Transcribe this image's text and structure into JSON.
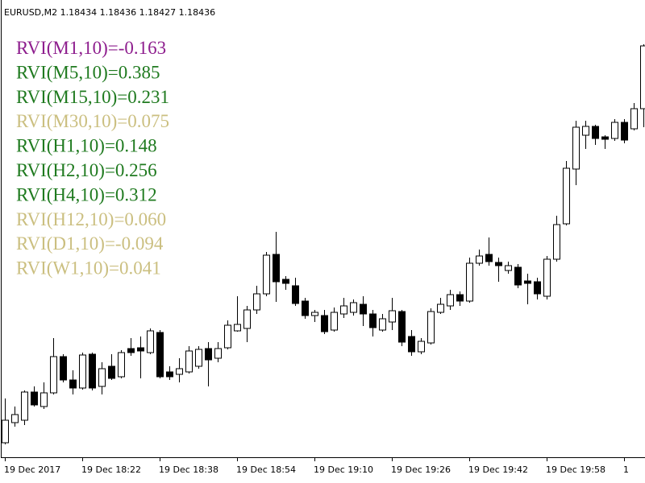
{
  "chart_data": {
    "type": "candlestick",
    "header": "EURUSD,M2  1.18434 1.18436 1.18427 1.18436",
    "annotations": [
      {
        "text": "RVI(M1,10)=-0.163",
        "color": "#8e1e8e"
      },
      {
        "text": "RVI(M5,10)=0.385",
        "color": "#1f7a1f"
      },
      {
        "text": "RVI(M15,10)=0.231",
        "color": "#1f7a1f"
      },
      {
        "text": "RVI(M30,10)=0.075",
        "color": "#cbbf80"
      },
      {
        "text": "RVI(H1,10)=0.148",
        "color": "#1f7a1f"
      },
      {
        "text": "RVI(H2,10)=0.256",
        "color": "#1f7a1f"
      },
      {
        "text": "RVI(H4,10)=0.312",
        "color": "#1f7a1f"
      },
      {
        "text": "RVI(H12,10)=0.060",
        "color": "#cbbf80"
      },
      {
        "text": "RVI(D1,10)=-0.094",
        "color": "#cbbf80"
      },
      {
        "text": "RVI(W1,10)=0.041",
        "color": "#cbbf80"
      }
    ],
    "categories": [
      "19 Dec 2017",
      null,
      null,
      null,
      null,
      null,
      null,
      null,
      "19 Dec 18:22",
      null,
      null,
      null,
      null,
      null,
      null,
      null,
      "19 Dec 18:38",
      null,
      null,
      null,
      null,
      null,
      null,
      null,
      "19 Dec 18:54",
      null,
      null,
      null,
      null,
      null,
      null,
      null,
      "19 Dec 19:10",
      null,
      null,
      null,
      null,
      null,
      null,
      null,
      "19 Dec 19:26",
      null,
      null,
      null,
      null,
      null,
      null,
      null,
      "19 Dec 19:42",
      null,
      null,
      null,
      null,
      null,
      null,
      null,
      "19 Dec 19:58",
      null,
      null,
      null,
      null,
      null,
      null,
      null,
      "1",
      null,
      null
    ],
    "open": [
      1.1795,
      1.17975,
      1.17978,
      1.18013,
      1.17995,
      1.18012,
      1.18057,
      1.18028,
      1.18018,
      1.1806,
      1.1802,
      1.18045,
      1.18032,
      1.18067,
      1.18068,
      1.18062,
      1.18087,
      1.18038,
      1.18035,
      1.18038,
      1.18045,
      1.18067,
      1.18055,
      1.18068,
      1.18089,
      1.18092,
      1.18115,
      1.18135,
      1.18184,
      1.18153,
      1.18145,
      1.18126,
      1.18108,
      1.18108,
      1.1809,
      1.1811,
      1.18112,
      1.18122,
      1.1811,
      1.1809,
      1.181,
      1.18113,
      1.18082,
      1.18063,
      1.18074,
      1.18112,
      1.1812,
      1.18134,
      1.18126,
      1.18173,
      1.18184,
      1.18174,
      1.18164,
      1.18168,
      1.18151,
      1.1815,
      1.18132,
      1.18178,
      1.18222,
      1.1829,
      1.18332,
      1.18343,
      1.1833,
      1.18328,
      1.18348,
      1.1834,
      1.18365
    ],
    "high": [
      1.18005,
      1.17995,
      1.18015,
      1.1802,
      1.18025,
      1.1808,
      1.1806,
      1.1804,
      1.18062,
      1.18062,
      1.1805,
      1.1806,
      1.18065,
      1.1808,
      1.18082,
      1.18092,
      1.1809,
      1.18045,
      1.18055,
      1.1807,
      1.1807,
      1.18075,
      1.18075,
      1.18102,
      1.18132,
      1.1812,
      1.18145,
      1.18187,
      1.18212,
      1.18157,
      1.18155,
      1.1813,
      1.18115,
      1.18115,
      1.18118,
      1.1813,
      1.18128,
      1.18132,
      1.18115,
      1.1811,
      1.1813,
      1.18115,
      1.1809,
      1.1808,
      1.18117,
      1.1813,
      1.1814,
      1.18138,
      1.1818,
      1.1819,
      1.18205,
      1.1818,
      1.18175,
      1.18172,
      1.1816,
      1.18155,
      1.18182,
      1.18232,
      1.183,
      1.1835,
      1.1835,
      1.18345,
      1.18332,
      1.18352,
      1.18352,
      1.18372,
      1.18445
    ],
    "low": [
      1.17948,
      1.1797,
      1.17972,
      1.17995,
      1.17992,
      1.1801,
      1.18025,
      1.1801,
      1.18016,
      1.18015,
      1.1801,
      1.18028,
      1.1803,
      1.18058,
      1.1803,
      1.1806,
      1.1803,
      1.18028,
      1.18025,
      1.18036,
      1.18042,
      1.1802,
      1.1805,
      1.18066,
      1.18088,
      1.18075,
      1.1811,
      1.18132,
      1.18125,
      1.1814,
      1.1812,
      1.18104,
      1.181,
      1.18085,
      1.18088,
      1.18105,
      1.18108,
      1.18095,
      1.18082,
      1.18088,
      1.1809,
      1.1807,
      1.18058,
      1.1806,
      1.18072,
      1.1811,
      1.18115,
      1.1812,
      1.18124,
      1.1817,
      1.1817,
      1.1815,
      1.1816,
      1.18142,
      1.18122,
      1.18128,
      1.18128,
      1.18175,
      1.1822,
      1.1827,
      1.18315,
      1.1832,
      1.18315,
      1.18325,
      1.18322,
      1.18338,
      1.18342
    ],
    "close": [
      1.17978,
      1.17985,
      1.18013,
      1.17997,
      1.18012,
      1.18057,
      1.18028,
      1.18018,
      1.18059,
      1.18018,
      1.18042,
      1.1803,
      1.18062,
      1.18062,
      1.18064,
      1.18089,
      1.18032,
      1.18032,
      1.18042,
      1.18064,
      1.18066,
      1.18053,
      1.18067,
      1.18096,
      1.18097,
      1.18115,
      1.18135,
      1.18183,
      1.1815,
      1.18148,
      1.18123,
      1.18108,
      1.18112,
      1.18088,
      1.18112,
      1.1812,
      1.18124,
      1.1811,
      1.18093,
      1.18104,
      1.18114,
      1.18075,
      1.18063,
      1.18076,
      1.18113,
      1.18122,
      1.18134,
      1.18126,
      1.18173,
      1.18182,
      1.18175,
      1.1817,
      1.1817,
      1.18146,
      1.18148,
      1.18135,
      1.18178,
      1.18221,
      1.18291,
      1.18342,
      1.18343,
      1.18328,
      1.18327,
      1.18348,
      1.18326,
      1.18365,
      1.18443
    ],
    "up_color": "#ffffff",
    "down_color": "#000000",
    "ylim": [
      1.17932,
      1.18475
    ]
  }
}
